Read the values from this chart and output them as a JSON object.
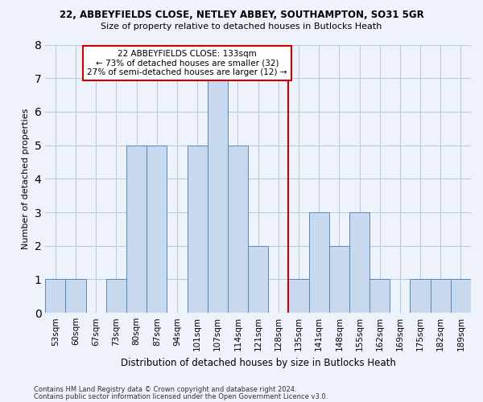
{
  "title": "22, ABBEYFIELDS CLOSE, NETLEY ABBEY, SOUTHAMPTON, SO31 5GR",
  "subtitle": "Size of property relative to detached houses in Butlocks Heath",
  "xlabel": "Distribution of detached houses by size in Butlocks Heath",
  "ylabel": "Number of detached properties",
  "categories": [
    "53sqm",
    "60sqm",
    "67sqm",
    "73sqm",
    "80sqm",
    "87sqm",
    "94sqm",
    "101sqm",
    "107sqm",
    "114sqm",
    "121sqm",
    "128sqm",
    "135sqm",
    "141sqm",
    "148sqm",
    "155sqm",
    "162sqm",
    "169sqm",
    "175sqm",
    "182sqm",
    "189sqm"
  ],
  "values": [
    1,
    1,
    0,
    1,
    5,
    5,
    0,
    5,
    7,
    5,
    2,
    0,
    1,
    3,
    2,
    3,
    1,
    0,
    1,
    1,
    1
  ],
  "bar_color": "#c8d8ee",
  "bar_edge_color": "#5588bb",
  "vline_index": 12,
  "vline_color": "#cc0000",
  "annotation_text": "22 ABBEYFIELDS CLOSE: 133sqm\n← 73% of detached houses are smaller (32)\n27% of semi-detached houses are larger (12) →",
  "annotation_box_color": "#cc0000",
  "ylim": [
    0,
    8
  ],
  "yticks": [
    0,
    1,
    2,
    3,
    4,
    5,
    6,
    7,
    8
  ],
  "footnote1": "Contains HM Land Registry data © Crown copyright and database right 2024.",
  "footnote2": "Contains public sector information licensed under the Open Government Licence v3.0.",
  "background_color": "#eef2fa",
  "grid_color": "#bbccdd"
}
